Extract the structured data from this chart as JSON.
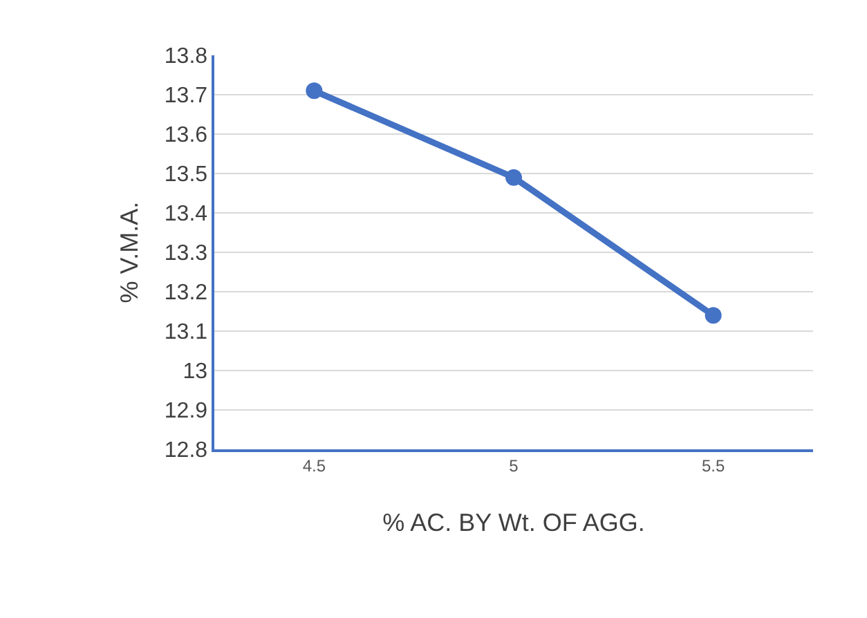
{
  "chart_data": {
    "type": "line",
    "xlabel": "% AC. BY Wt. OF AGG.",
    "ylabel": "% V.M.A.",
    "categories": [
      "4.5",
      "5",
      "5.5"
    ],
    "series": [
      {
        "color": "#4472c4",
        "values": [
          13.71,
          13.49,
          13.14
        ]
      }
    ],
    "ylim": [
      12.8,
      13.8
    ],
    "yticks": [
      12.8,
      12.9,
      13,
      13.1,
      13.2,
      13.3,
      13.4,
      13.5,
      13.6,
      13.7,
      13.8
    ],
    "grid": "y",
    "marker": "circle",
    "line_style": "solid"
  }
}
